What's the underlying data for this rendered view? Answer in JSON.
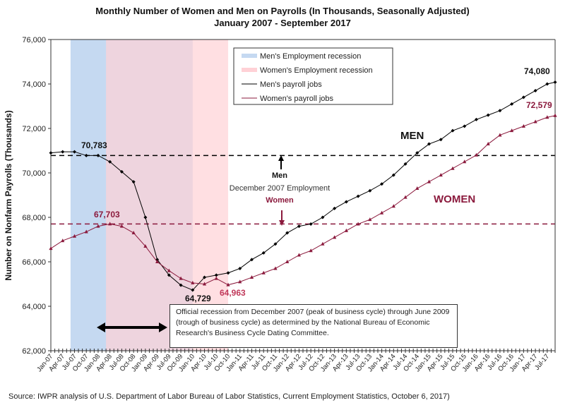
{
  "chart_data": {
    "type": "line",
    "title": "Monthly Number of Women and Men on Payrolls (In Thousands, Seasonally Adjusted)",
    "subtitle": "January 2007 - September 2017",
    "ylabel": "Number on Nonfarm Payrolls (Thousands)",
    "xlabel": "",
    "ylim": [
      62000,
      76000
    ],
    "yticks": [
      "62,000",
      "64,000",
      "66,000",
      "68,000",
      "70,000",
      "72,000",
      "74,000",
      "76,000"
    ],
    "xlim": [
      "2007-01",
      "2017-09"
    ],
    "xticks": [
      "Jan-07",
      "Apr-07",
      "Jul-07",
      "Oct-07",
      "Jan-08",
      "Apr-08",
      "Jul-08",
      "Oct-08",
      "Jan-09",
      "Apr-09",
      "Jul-09",
      "Oct-09",
      "Jan-10",
      "Apr-10",
      "Jul-10",
      "Oct-10",
      "Jan-11",
      "Apr-11",
      "Jul-11",
      "Oct-11",
      "Jan-12",
      "Apr-12",
      "Jul-12",
      "Oct-12",
      "Jan-13",
      "Apr-13",
      "Jul-13",
      "Oct-13",
      "Jan-14",
      "Apr-14",
      "Jul-14",
      "Oct-14",
      "Jan-15",
      "Apr-15",
      "Jul-15",
      "Oct-15",
      "Jan-16",
      "Apr-16",
      "Jul-16",
      "Oct-16",
      "Jan-17",
      "Apr-17",
      "Jul-17"
    ],
    "grid": false,
    "legend_placement": "top-center",
    "x": [
      "2007-01",
      "2007-04",
      "2007-07",
      "2007-10",
      "2008-01",
      "2008-04",
      "2008-07",
      "2008-10",
      "2009-01",
      "2009-04",
      "2009-07",
      "2009-10",
      "2010-01",
      "2010-04",
      "2010-07",
      "2010-10",
      "2011-01",
      "2011-04",
      "2011-07",
      "2011-10",
      "2012-01",
      "2012-04",
      "2012-07",
      "2012-10",
      "2013-01",
      "2013-04",
      "2013-07",
      "2013-10",
      "2014-01",
      "2014-04",
      "2014-07",
      "2014-10",
      "2015-01",
      "2015-04",
      "2015-07",
      "2015-10",
      "2016-01",
      "2016-04",
      "2016-07",
      "2016-10",
      "2017-01",
      "2017-04",
      "2017-07",
      "2017-09"
    ],
    "series": [
      {
        "name": "Men's payroll jobs",
        "color": "#000000",
        "marker": "diamond",
        "values": [
          70900,
          70950,
          70950,
          70780,
          70783,
          70500,
          70050,
          69600,
          68000,
          66100,
          65400,
          64950,
          64729,
          65300,
          65400,
          65500,
          65700,
          66100,
          66400,
          66800,
          67300,
          67600,
          67700,
          68000,
          68400,
          68700,
          68950,
          69200,
          69500,
          69900,
          70400,
          70900,
          71300,
          71500,
          71900,
          72100,
          72400,
          72600,
          72800,
          73100,
          73400,
          73700,
          74000,
          74080
        ]
      },
      {
        "name": "Women's payroll jobs",
        "color": "#8b1a3d",
        "marker": "triangle",
        "values": [
          66600,
          66950,
          67150,
          67350,
          67600,
          67703,
          67600,
          67300,
          66700,
          66000,
          65600,
          65250,
          65050,
          65000,
          65250,
          64963,
          65100,
          65300,
          65500,
          65700,
          66000,
          66300,
          66500,
          66800,
          67100,
          67400,
          67700,
          67900,
          68200,
          68500,
          68900,
          69300,
          69600,
          69900,
          70200,
          70500,
          70800,
          71300,
          71700,
          71900,
          72100,
          72300,
          72500,
          72579
        ]
      }
    ],
    "shaded_regions": [
      {
        "name": "Men's Employment recession",
        "start": "2007-06",
        "end": "2010-01",
        "color": "#c5d9f1"
      },
      {
        "name": "Women's Employment  recession",
        "start": "2008-03",
        "end": "2010-10",
        "color": "#ffd1d6"
      }
    ],
    "reference_lines": [
      {
        "value": 70783,
        "color": "#000000",
        "label": "Men"
      },
      {
        "value": 67703,
        "color": "#8b1a3d",
        "label": "Women"
      }
    ],
    "annotations": {
      "men_peak": "70,783",
      "women_peak": "67,703",
      "men_trough": "64,729",
      "women_trough": "64,963",
      "men_latest": "74,080",
      "women_latest": "72,579",
      "men_series_label": "MEN",
      "women_series_label": "WOMEN",
      "ref_men": "Men",
      "ref_middle": "December 2007 Employment",
      "ref_women": "Women",
      "recession_note": "Official recession from December 2007 (peak of business cycle) through June 2009 (trough of business cycle) as determined by the National Bureau of Economic Research's Business Cycle Dating Committee."
    }
  },
  "source": "Source: IWPR analysis of U.S. Department of Labor Bureau of Labor Statistics, Current Employment Statistics, October 6, 2017)"
}
